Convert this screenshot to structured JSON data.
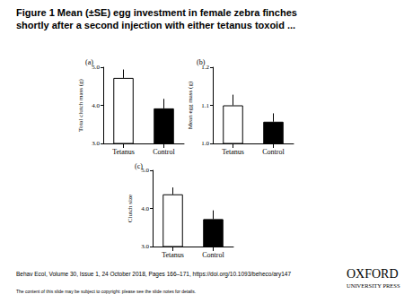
{
  "slide": {
    "title": [
      "Figure 1 Mean (±SE) egg investment in female zebra finches",
      "shortly after a second injection with either tetanus toxoid ..."
    ],
    "citation": "Behav Ecol, Volume 30, Issue 1, 24 October 2018, Pages 166–171, https://doi.org/10.1093/beheco/ary147",
    "note": "The content of this slide may be subject to copyright: please see the slide notes for details.",
    "logo": [
      "OXFORD",
      "UNIVERSITY PRESS"
    ]
  },
  "chart_data": [
    {
      "type": "bar",
      "title": "(a)",
      "y_label": "Total clutch mass (g)",
      "categories": [
        "Tetanus",
        "Control"
      ],
      "values": [
        4.72,
        3.92
      ],
      "errors": [
        0.22,
        0.25
      ],
      "colors": [
        "#ffffff",
        "#000000"
      ],
      "ylim": [
        3.0,
        5.0
      ],
      "yticks": [
        {
          "value": 3,
          "label": "3.0"
        },
        {
          "value": 4,
          "label": "4.0"
        },
        {
          "value": 5,
          "label": "5.0"
        }
      ],
      "grid": false
    },
    {
      "type": "bar",
      "title": "(b)",
      "y_label": "Mean egg mass (g)",
      "categories": [
        "Tetanus",
        "Control"
      ],
      "values": [
        1.1,
        1.057
      ],
      "errors": [
        0.028,
        0.022
      ],
      "colors": [
        "#ffffff",
        "#000000"
      ],
      "ylim": [
        1.0,
        1.2
      ],
      "yticks": [
        {
          "value": 1,
          "label": "1.0"
        },
        1.1,
        1.2
      ],
      "grid": false
    },
    {
      "type": "bar",
      "title": "(c)",
      "y_label": "Clutch size",
      "categories": [
        "Tetanus",
        "Control"
      ],
      "values": [
        4.37,
        3.72
      ],
      "errors": [
        0.18,
        0.23
      ],
      "colors": [
        "#ffffff",
        "#000000"
      ],
      "ylim": [
        3.0,
        5.0
      ],
      "yticks": [
        {
          "value": 3,
          "label": "3.0"
        },
        {
          "value": 4,
          "label": "4.0"
        },
        {
          "value": 5,
          "label": "5.0"
        }
      ],
      "grid": false
    }
  ]
}
